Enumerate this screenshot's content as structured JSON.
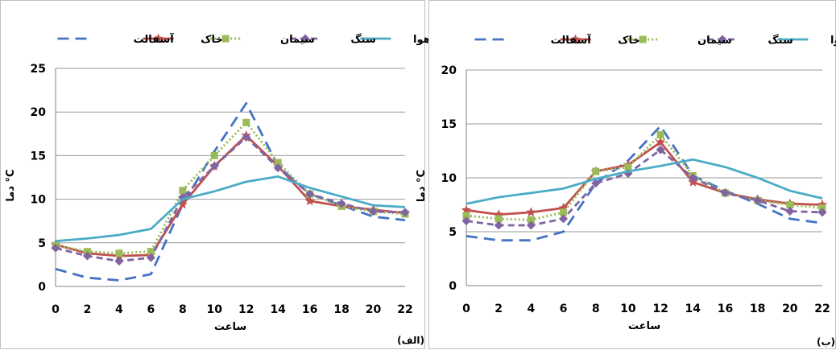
{
  "chart_data": [
    {
      "type": "line",
      "panel_label": "(الف)",
      "xlabel": "ساعت",
      "ylabel": "دما °C",
      "x": [
        0,
        2,
        4,
        6,
        8,
        10,
        12,
        14,
        16,
        18,
        20,
        22
      ],
      "ylim": [
        0,
        25
      ],
      "yticks": [
        0,
        5,
        10,
        15,
        20,
        25
      ],
      "grid": true,
      "legend_position": "top",
      "series": [
        {
          "name": "آسفالت",
          "color": "#4472c4",
          "style": "longdash",
          "marker": "none",
          "values": [
            2.0,
            1.0,
            0.7,
            1.4,
            9.4,
            15.5,
            21.0,
            13.8,
            10.6,
            9.3,
            8.0,
            7.6
          ]
        },
        {
          "name": "خاک",
          "color": "#c0504d",
          "style": "solid",
          "marker": "star",
          "values": [
            4.8,
            3.8,
            3.5,
            3.6,
            9.4,
            13.8,
            17.3,
            13.8,
            9.8,
            9.2,
            8.8,
            8.4
          ]
        },
        {
          "name": "سیمان",
          "color": "#9bbb59",
          "style": "dotted",
          "marker": "square",
          "values": [
            4.7,
            4.0,
            3.8,
            4.0,
            11.0,
            15.0,
            18.8,
            14.2,
            10.6,
            9.2,
            8.6,
            8.3
          ]
        },
        {
          "name": "سنگ",
          "color": "#8064a2",
          "style": "dash",
          "marker": "diamond",
          "values": [
            4.4,
            3.5,
            2.9,
            3.3,
            10.2,
            13.8,
            17.1,
            13.6,
            10.6,
            9.5,
            8.6,
            8.5
          ]
        },
        {
          "name": "هوا",
          "color": "#4bacc6",
          "style": "solid",
          "marker": "none",
          "values": [
            5.2,
            5.5,
            5.9,
            6.6,
            10.0,
            10.9,
            12.0,
            12.6,
            11.3,
            10.3,
            9.3,
            9.1
          ]
        }
      ]
    },
    {
      "type": "line",
      "panel_label": "(ب)",
      "xlabel": "ساعت",
      "ylabel": "دما °C",
      "x": [
        0,
        2,
        4,
        6,
        8,
        10,
        12,
        14,
        16,
        18,
        20,
        22
      ],
      "ylim": [
        0,
        20
      ],
      "yticks": [
        0,
        5,
        10,
        15,
        20
      ],
      "grid": true,
      "legend_position": "top",
      "series": [
        {
          "name": "آسفالت",
          "color": "#4472c4",
          "style": "longdash",
          "marker": "none",
          "values": [
            4.6,
            4.2,
            4.2,
            5.0,
            9.5,
            11.6,
            14.8,
            10.2,
            8.8,
            7.6,
            6.2,
            5.8
          ]
        },
        {
          "name": "خاک",
          "color": "#c0504d",
          "style": "solid",
          "marker": "star",
          "values": [
            7.0,
            6.6,
            6.8,
            7.2,
            10.6,
            11.2,
            13.3,
            9.6,
            8.6,
            8.0,
            7.6,
            7.5
          ]
        },
        {
          "name": "سیمان",
          "color": "#9bbb59",
          "style": "dotted",
          "marker": "square",
          "values": [
            6.5,
            6.2,
            6.1,
            6.8,
            10.6,
            11.0,
            14.0,
            10.2,
            8.6,
            7.9,
            7.5,
            7.2
          ]
        },
        {
          "name": "سنگ",
          "color": "#8064a2",
          "style": "dash",
          "marker": "diamond",
          "values": [
            6.0,
            5.6,
            5.6,
            6.2,
            9.5,
            10.4,
            12.6,
            10.0,
            8.6,
            7.9,
            6.9,
            6.8
          ]
        },
        {
          "name": "هوا",
          "color": "#4bacc6",
          "style": "solid",
          "marker": "none",
          "values": [
            7.6,
            8.2,
            8.6,
            9.0,
            9.9,
            10.6,
            11.1,
            11.7,
            11.0,
            10.0,
            8.8,
            8.1
          ]
        }
      ]
    }
  ]
}
